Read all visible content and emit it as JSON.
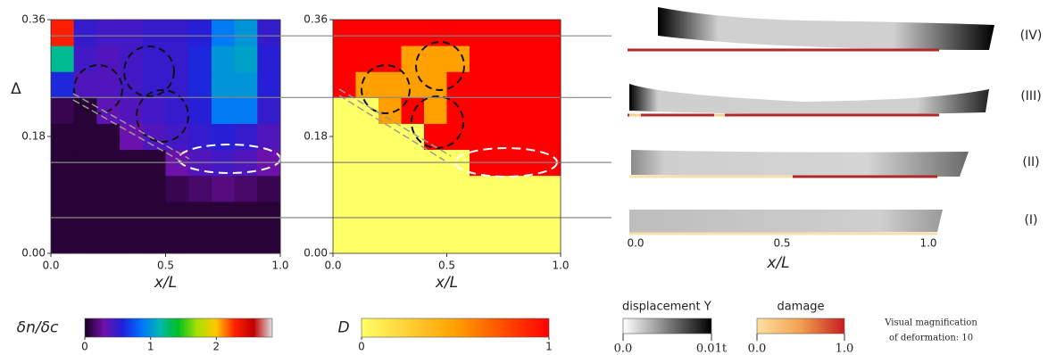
{
  "chart_data": [
    {
      "type": "heatmap",
      "xlabel": "x/L",
      "ylabel": "Δ",
      "xlim": [
        0,
        1
      ],
      "ylim": [
        0,
        0.36
      ],
      "xticks": [
        {
          "value": 0,
          "label": "0.0"
        },
        {
          "value": 0.5,
          "label": "0.5"
        },
        {
          "value": 1,
          "label": "1.0"
        }
      ],
      "yticks": [
        {
          "value": 0,
          "label": "0.00"
        },
        {
          "value": 0.18,
          "label": "0.18"
        },
        {
          "value": 0.36,
          "label": "0.36"
        }
      ],
      "z": [
        [
          0.05,
          0.05,
          0.05,
          0.05,
          0.05,
          0.05,
          0.05,
          0.05,
          0.05,
          0.05
        ],
        [
          0.05,
          0.05,
          0.05,
          0.05,
          0.05,
          0.05,
          0.05,
          0.05,
          0.05,
          0.05
        ],
        [
          0.05,
          0.05,
          0.05,
          0.05,
          0.05,
          0.1,
          0.15,
          0.2,
          0.15,
          0.1
        ],
        [
          0.05,
          0.05,
          0.05,
          0.05,
          0.05,
          0.3,
          0.4,
          0.45,
          0.4,
          0.3
        ],
        [
          0.05,
          0.05,
          0.05,
          0.3,
          0.4,
          0.45,
          0.5,
          0.55,
          0.5,
          0.4
        ],
        [
          0.1,
          0.05,
          0.35,
          0.4,
          0.45,
          0.5,
          0.55,
          0.9,
          0.9,
          0.5
        ],
        [
          0.6,
          0.4,
          0.4,
          0.45,
          0.5,
          0.5,
          0.6,
          1.0,
          1.0,
          0.55
        ],
        [
          1.2,
          0.45,
          0.4,
          0.45,
          0.5,
          0.5,
          0.6,
          1.0,
          1.05,
          0.55
        ],
        [
          2.3,
          0.5,
          0.45,
          0.45,
          0.5,
          0.5,
          0.55,
          0.9,
          1.0,
          0.5
        ]
      ],
      "clim": [
        0,
        2.85
      ],
      "colormap": [
        "#1a0020",
        "#7010a8",
        "#2020d8",
        "#0070ff",
        "#00b8b0",
        "#00c020",
        "#a8e000",
        "#ffc800",
        "#ff2000",
        "#c00000",
        "#e0e0e0"
      ],
      "colorbar_label": "δn/δc",
      "colorbar_ticks": [
        0,
        1,
        2
      ],
      "levels": [
        0.055,
        0.14,
        0.24,
        0.335
      ]
    },
    {
      "type": "heatmap",
      "xlabel": "x/L",
      "xlim": [
        0,
        1
      ],
      "ylim": [
        0,
        0.36
      ],
      "xticks": [
        {
          "value": 0,
          "label": "0.0"
        },
        {
          "value": 0.5,
          "label": "0.5"
        },
        {
          "value": 1,
          "label": "1.0"
        }
      ],
      "yticks": [
        {
          "value": 0,
          "label": "0.00"
        },
        {
          "value": 0.18,
          "label": "0.18"
        },
        {
          "value": 0.36,
          "label": "0.36"
        }
      ],
      "z": [
        [
          0,
          0,
          0,
          0,
          0,
          0,
          0,
          0,
          0,
          0
        ],
        [
          0,
          0,
          0,
          0,
          0,
          0,
          0,
          0,
          0,
          0
        ],
        [
          0,
          0,
          0,
          0,
          0,
          0,
          0,
          0,
          0,
          0
        ],
        [
          0,
          0,
          0,
          0,
          0,
          0,
          1,
          1,
          1,
          1
        ],
        [
          0,
          0,
          0,
          0,
          1,
          1,
          1,
          1,
          1,
          1
        ],
        [
          0,
          0,
          0.5,
          1,
          0.5,
          1,
          1,
          1,
          1,
          1
        ],
        [
          1,
          0.5,
          0.5,
          0.5,
          0.5,
          1,
          1,
          1,
          1,
          1
        ],
        [
          1,
          1,
          1,
          0.5,
          0.5,
          0.5,
          1,
          1,
          1,
          1
        ],
        [
          1,
          1,
          1,
          1,
          1,
          1,
          1,
          1,
          1,
          1
        ]
      ],
      "clim": [
        0,
        1
      ],
      "colormap": [
        "#ffff66",
        "#ffa000",
        "#ff0000"
      ],
      "colorbar_label": "D",
      "colorbar_ticks": [
        0,
        1
      ]
    },
    {
      "type": "deformation",
      "labels": [
        "(IV)",
        "(III)",
        "(II)",
        "(I)"
      ],
      "xlabel": "x/L",
      "xlim": [
        0,
        1
      ],
      "xticks": [
        {
          "value": 0,
          "label": "0.0"
        },
        {
          "value": 0.5,
          "label": "0.5"
        },
        {
          "value": 1,
          "label": "1.0"
        }
      ],
      "colorbars": [
        {
          "label": "displacement Y",
          "clim": [
            0,
            0.01
          ],
          "colormap": [
            "#ffffff",
            "#000000"
          ],
          "ticks": [
            {
              "value": 0,
              "label": "0.0"
            },
            {
              "value": 0.01,
              "label": "0.01t"
            }
          ]
        },
        {
          "label": "damage",
          "clim": [
            0,
            1
          ],
          "colormap": [
            "#ffe0a0",
            "#f0a050",
            "#c81e1e"
          ],
          "ticks": [
            {
              "value": 0,
              "label": "0.0"
            },
            {
              "value": 1,
              "label": "1.0"
            }
          ]
        }
      ],
      "note": [
        "Visual magnification",
        "of deformation: 10"
      ]
    }
  ]
}
